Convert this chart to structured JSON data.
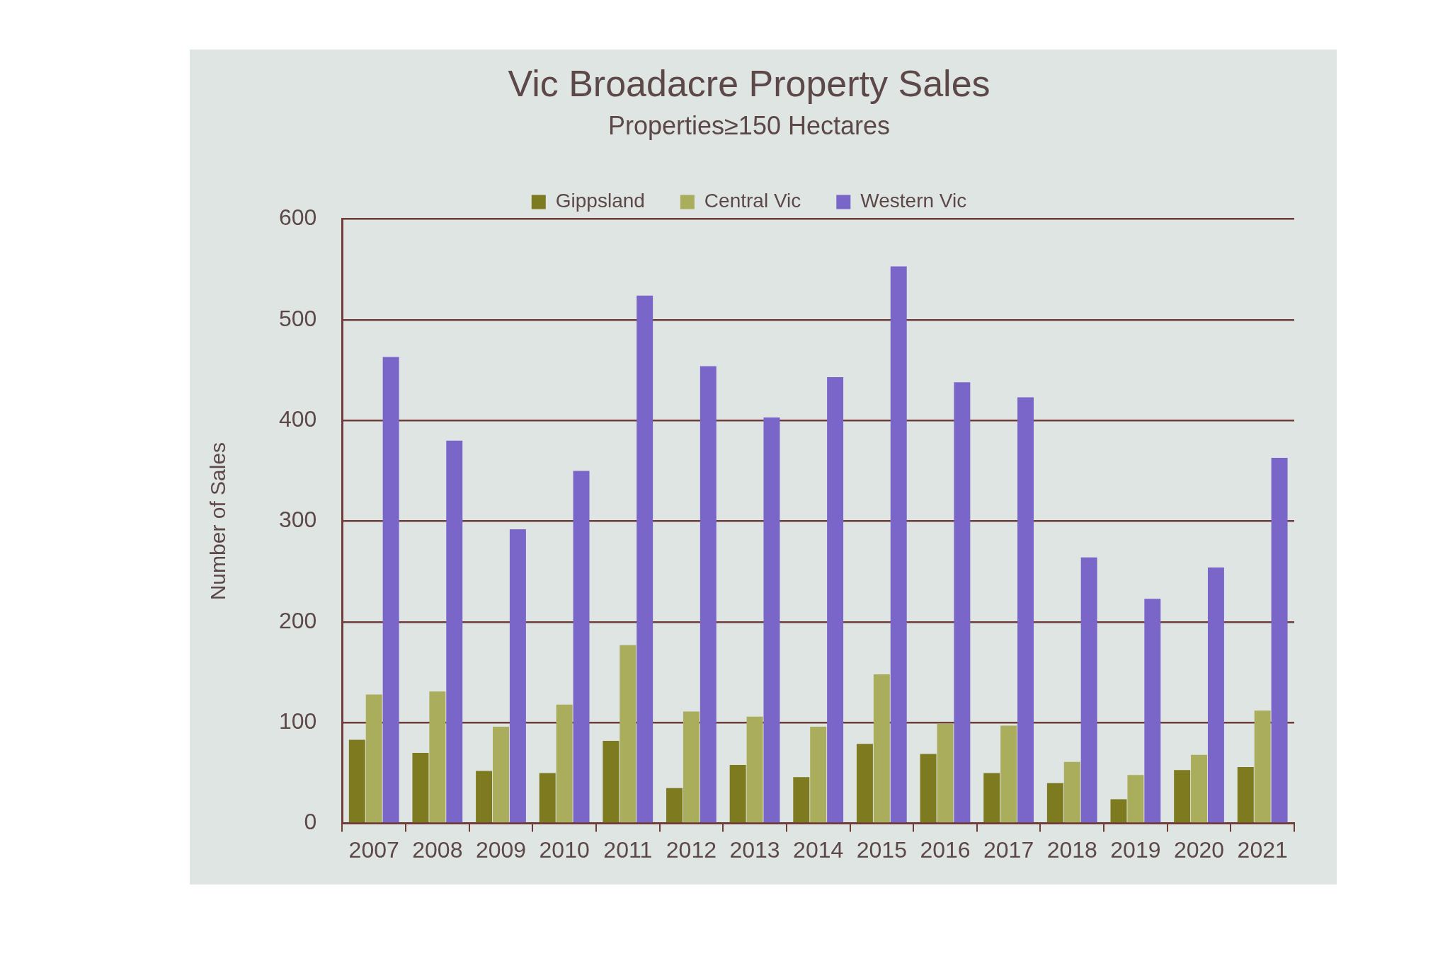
{
  "chart_data": {
    "type": "bar",
    "title": "Vic Broadacre Property Sales",
    "subtitle": "Properties≥150 Hectares",
    "ylabel": "Number of Sales",
    "categories": [
      "2007",
      "2008",
      "2009",
      "2010",
      "2011",
      "2012",
      "2013",
      "2014",
      "2015",
      "2016",
      "2017",
      "2018",
      "2019",
      "2020",
      "2021"
    ],
    "series": [
      {
        "name": "Gippsland",
        "color": "#7d7a1f",
        "values": [
          83,
          70,
          52,
          50,
          82,
          35,
          58,
          46,
          79,
          69,
          50,
          40,
          24,
          53,
          56
        ]
      },
      {
        "name": "Central Vic",
        "color": "#a9ad5c",
        "values": [
          128,
          131,
          96,
          118,
          177,
          111,
          106,
          96,
          148,
          99,
          97,
          61,
          48,
          68,
          112
        ]
      },
      {
        "name": "Western Vic",
        "color": "#7a66c9",
        "values": [
          463,
          380,
          292,
          350,
          524,
          454,
          403,
          443,
          553,
          438,
          423,
          264,
          223,
          254,
          363
        ]
      }
    ],
    "ylim": [
      0,
      600
    ],
    "yticks": [
      0,
      100,
      200,
      300,
      400,
      500,
      600
    ],
    "grid": "y",
    "legend": "top"
  }
}
